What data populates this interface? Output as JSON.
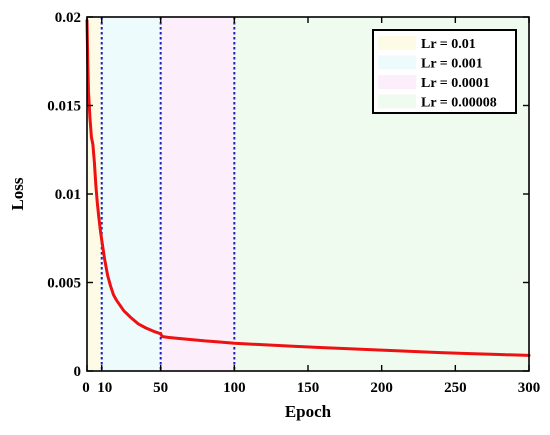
{
  "chart_data": {
    "type": "line",
    "xlabel": "Epoch",
    "ylabel": "Loss",
    "xlim": [
      0,
      300
    ],
    "ylim": [
      0,
      0.02
    ],
    "x_ticks": [
      0,
      10,
      50,
      100,
      150,
      200,
      250,
      300
    ],
    "x_tick_labels": [
      "0",
      "10",
      "50",
      "100",
      "150",
      "200",
      "250",
      "300"
    ],
    "y_ticks": [
      0,
      0.005,
      0.01,
      0.015,
      0.02
    ],
    "y_tick_labels": [
      "0",
      "0.005",
      "0.01",
      "0.015",
      "0.02"
    ],
    "grid": false,
    "legend_position": "top-right",
    "regions": [
      {
        "label": "Lr = 0.01",
        "x_start": 0,
        "x_end": 10,
        "color": "#fdfbe6"
      },
      {
        "label": "Lr = 0.001",
        "x_start": 10,
        "x_end": 50,
        "color": "#eefbfd"
      },
      {
        "label": "Lr = 0.0001",
        "x_start": 50,
        "x_end": 100,
        "color": "#fdeefb"
      },
      {
        "label": "Lr = 0.00008",
        "x_start": 100,
        "x_end": 300,
        "color": "#f0fbef"
      }
    ],
    "boundaries": [
      10,
      50,
      100
    ],
    "boundary_color": "#1f1fbf",
    "series": [
      {
        "color": "#ee1111",
        "x": [
          0,
          0.5,
          1,
          2,
          3,
          4,
          5,
          6,
          7,
          8,
          9,
          10,
          12,
          14,
          16,
          18,
          20,
          25,
          30,
          35,
          40,
          45,
          50,
          51,
          55,
          60,
          70,
          80,
          90,
          100,
          120,
          140,
          160,
          180,
          200,
          220,
          240,
          260,
          280,
          300
        ],
        "y": [
          0.0198,
          0.0175,
          0.0158,
          0.0143,
          0.0132,
          0.0128,
          0.0118,
          0.0105,
          0.0095,
          0.0087,
          0.008,
          0.0074,
          0.0063,
          0.0054,
          0.0048,
          0.0043,
          0.004,
          0.0034,
          0.003,
          0.00265,
          0.00243,
          0.00225,
          0.0021,
          0.00195,
          0.0019,
          0.00186,
          0.00178,
          0.0017,
          0.00164,
          0.00157,
          0.00148,
          0.0014,
          0.00132,
          0.00125,
          0.00118,
          0.00111,
          0.00104,
          0.00098,
          0.00093,
          0.00088
        ]
      }
    ]
  }
}
